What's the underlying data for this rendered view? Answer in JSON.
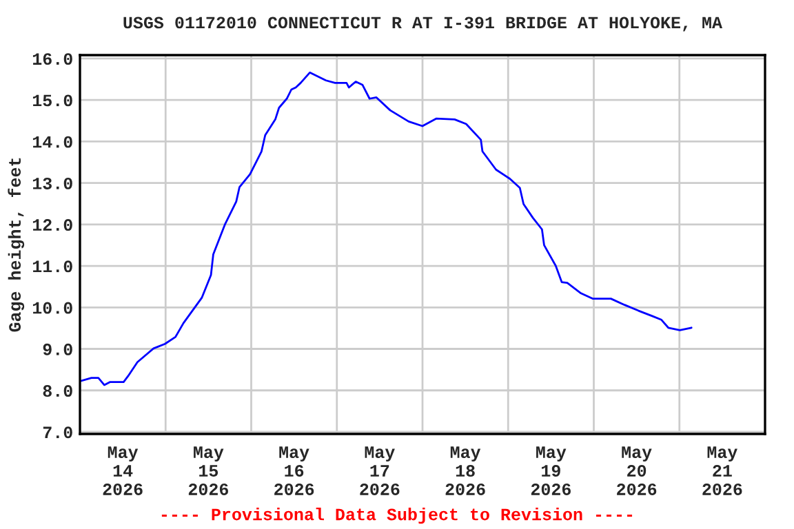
{
  "chart_data": {
    "type": "line",
    "title": "USGS 01172010 CONNECTICUT R AT I-391 BRIDGE AT HOLYOKE, MA",
    "ylabel": "Gage height, feet",
    "annotations": [
      "---- Provisional Data Subject to Revision ----"
    ],
    "x": [
      "2026-05-14T00:00",
      "2026-05-14T03:13",
      "2026-05-14T05:10",
      "2026-05-14T06:49",
      "2026-05-14T08:23",
      "2026-05-14T12:14",
      "2026-05-14T13:32",
      "2026-05-14T16:06",
      "2026-05-14T20:37",
      "2026-05-14T23:50",
      "2026-05-15T02:47",
      "2026-05-15T05:00",
      "2026-05-15T10:08",
      "2026-05-15T12:43",
      "2026-05-15T13:22",
      "2026-05-15T16:35",
      "2026-05-15T19:48",
      "2026-05-15T20:43",
      "2026-05-15T23:40",
      "2026-05-16T02:53",
      "2026-05-16T03:55",
      "2026-05-16T06:45",
      "2026-05-16T07:47",
      "2026-05-16T09:58",
      "2026-05-16T11:15",
      "2026-05-16T12:29",
      "2026-05-16T13:51",
      "2026-05-16T16:25",
      "2026-05-16T20:56",
      "2026-05-16T23:30",
      "2026-05-17T02:43",
      "2026-05-17T03:22",
      "2026-05-17T05:17",
      "2026-05-17T07:12",
      "2026-05-17T09:10",
      "2026-05-17T11:05",
      "2026-05-17T14:57",
      "2026-05-17T20:07",
      "2026-05-17T23:59",
      "2026-05-18T03:50",
      "2026-05-18T09:00",
      "2026-05-18T12:14",
      "2026-05-18T16:21",
      "2026-05-18T16:48",
      "2026-05-18T20:36",
      "2026-05-19T00:29",
      "2026-05-19T03:17",
      "2026-05-19T04:19",
      "2026-05-19T06:55",
      "2026-05-19T09:29",
      "2026-05-19T10:05",
      "2026-05-19T13:21",
      "2026-05-19T15:01",
      "2026-05-19T16:34",
      "2026-05-19T20:25",
      "2026-05-19T23:40",
      "2026-05-20T04:48",
      "2026-05-20T08:38",
      "2026-05-20T12:32",
      "2026-05-20T16:24",
      "2026-05-20T18:58",
      "2026-05-20T20:53",
      "2026-05-21T00:07",
      "2026-05-21T03:22"
    ],
    "series": [
      {
        "color": "#0000ff",
        "values": [
          8.22,
          8.3,
          8.3,
          8.13,
          8.2,
          8.2,
          8.35,
          8.68,
          9.01,
          9.12,
          9.29,
          9.62,
          10.23,
          10.78,
          11.28,
          11.99,
          12.55,
          12.9,
          13.21,
          13.76,
          14.15,
          14.53,
          14.81,
          15.03,
          15.25,
          15.3,
          15.41,
          15.66,
          15.47,
          15.41,
          15.41,
          15.3,
          15.44,
          15.36,
          15.03,
          15.06,
          14.75,
          14.48,
          14.37,
          14.55,
          14.53,
          14.42,
          14.04,
          13.76,
          13.32,
          13.1,
          12.88,
          12.49,
          12.16,
          11.88,
          11.5,
          11.0,
          10.61,
          10.59,
          10.34,
          10.21,
          10.21,
          10.06,
          9.92,
          9.79,
          9.7,
          9.51,
          9.45,
          9.51
        ]
      }
    ],
    "xlim": [
      "2026-05-14T00:00",
      "2026-05-22T00:00"
    ],
    "xticks": [
      {
        "value": "2026-05-14T00:00",
        "label": null
      },
      {
        "value": "2026-05-14T12:00",
        "label": "May\n14\n2026"
      },
      {
        "value": "2026-05-15T00:00",
        "label": null
      },
      {
        "value": "2026-05-15T12:00",
        "label": "May\n15\n2026"
      },
      {
        "value": "2026-05-16T00:00",
        "label": null
      },
      {
        "value": "2026-05-16T12:00",
        "label": "May\n16\n2026"
      },
      {
        "value": "2026-05-17T00:00",
        "label": null
      },
      {
        "value": "2026-05-17T12:00",
        "label": "May\n17\n2026"
      },
      {
        "value": "2026-05-18T00:00",
        "label": null
      },
      {
        "value": "2026-05-18T12:00",
        "label": "May\n18\n2026"
      },
      {
        "value": "2026-05-19T00:00",
        "label": null
      },
      {
        "value": "2026-05-19T12:00",
        "label": "May\n19\n2026"
      },
      {
        "value": "2026-05-20T00:00",
        "label": null
      },
      {
        "value": "2026-05-20T12:00",
        "label": "May\n20\n2026"
      },
      {
        "value": "2026-05-21T00:00",
        "label": null
      },
      {
        "value": "2026-05-21T12:00",
        "label": "May\n21\n2026"
      },
      {
        "value": "2026-05-22T00:00",
        "label": null
      }
    ],
    "ylim": [
      6.95,
      16.08
    ],
    "yticks": [
      {
        "value": 7,
        "label": "7.0"
      },
      {
        "value": 8,
        "label": "8.0"
      },
      {
        "value": 9,
        "label": "9.0"
      },
      {
        "value": 10,
        "label": "10.0"
      },
      {
        "value": 11,
        "label": "11.0"
      },
      {
        "value": 12,
        "label": "12.0"
      },
      {
        "value": 13,
        "label": "13.0"
      },
      {
        "value": 14,
        "label": "14.0"
      },
      {
        "value": 15,
        "label": "15.0"
      },
      {
        "value": 16,
        "label": "16.0"
      }
    ],
    "grid": true,
    "legend": false,
    "marker": "none",
    "line_style": "solid"
  }
}
